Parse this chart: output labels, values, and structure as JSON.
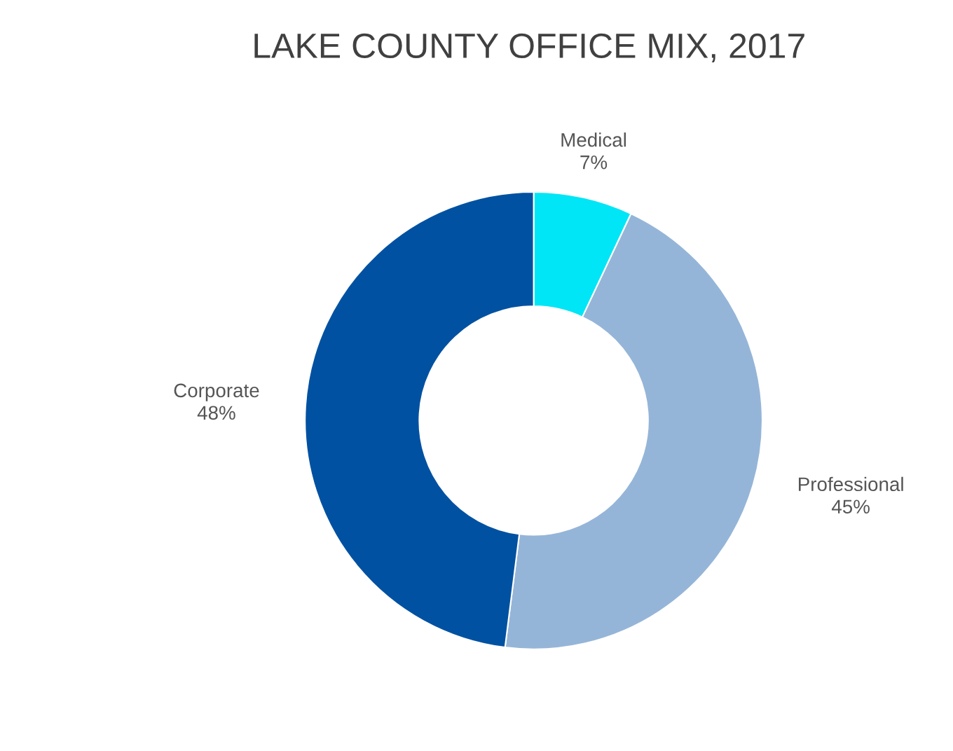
{
  "chart_data": {
    "type": "donut",
    "title": "LAKE COUNTY OFFICE MIX, 2017",
    "categories": [
      "Medical",
      "Professional",
      "Corporate"
    ],
    "values": [
      7,
      45,
      48
    ],
    "value_labels": [
      "7%",
      "45%",
      "48%"
    ],
    "colors": [
      "#00e6f6",
      "#95b5d8",
      "#0051a1"
    ],
    "legend": false
  }
}
